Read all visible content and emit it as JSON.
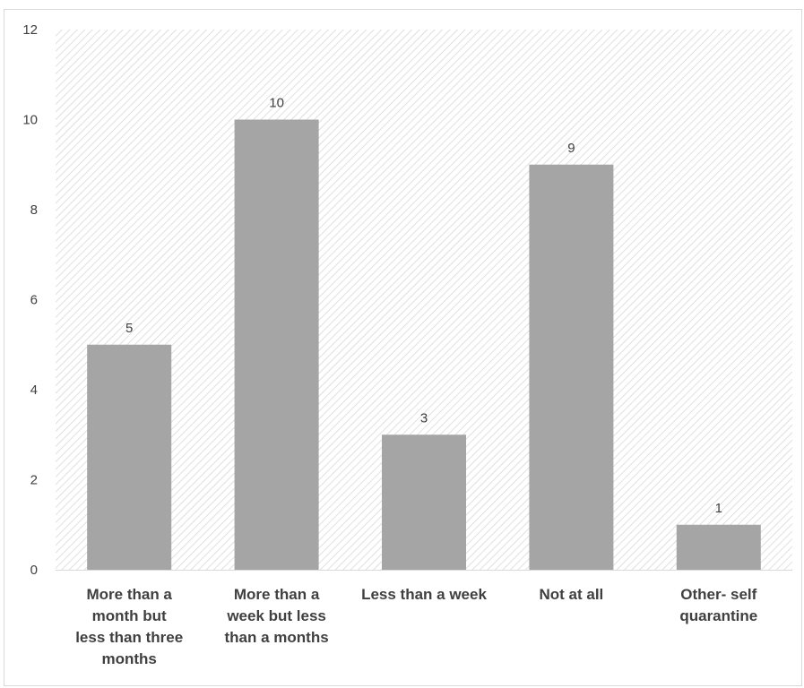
{
  "chart_data": {
    "type": "bar",
    "categories": [
      "More than a month but less than three months",
      "More than a week but less than a months",
      "Less than a week",
      "Not at all",
      "Other- self quarantine"
    ],
    "values": [
      5,
      10,
      3,
      9,
      1
    ],
    "data_labels": [
      "5",
      "10",
      "3",
      "9",
      "1"
    ],
    "y_ticks": [
      "0",
      "2",
      "4",
      "6",
      "8",
      "10",
      "12"
    ],
    "ylim": [
      0,
      12
    ],
    "title": "",
    "xlabel": "",
    "ylabel": "",
    "grid": false,
    "legend": "none",
    "bar_color": "#a5a5a5",
    "background": "hatched-gray"
  }
}
